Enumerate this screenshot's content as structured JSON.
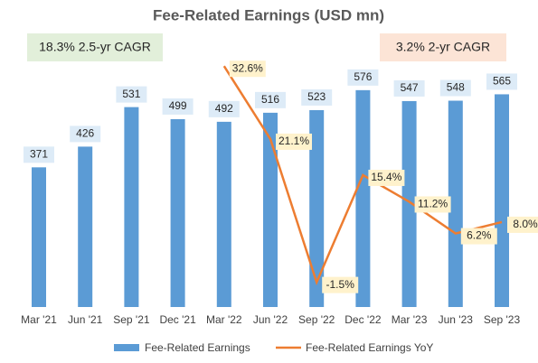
{
  "chart_data": {
    "type": "bar_line",
    "title": "Fee-Related Earnings (USD mn)",
    "annotations": [
      "18.3% 2.5-yr CAGR",
      "3.2% 2-yr CAGR"
    ],
    "categories": [
      "Mar '21",
      "Jun '21",
      "Sep '21",
      "Dec '21",
      "Mar '22",
      "Jun '22",
      "Sep '22",
      "Dec '22",
      "Mar '23",
      "Jun '23",
      "Sep '23"
    ],
    "series": [
      {
        "name": "Fee-Related Earnings",
        "color": "#5b9bd5",
        "values": [
          371,
          426,
          531,
          499,
          492,
          516,
          523,
          576,
          547,
          548,
          565
        ]
      },
      {
        "name": "Fee-Related Earnings YoY",
        "color": "#ed7d31",
        "axis": "y2",
        "values": [
          null,
          null,
          null,
          null,
          32.6,
          21.1,
          -1.5,
          15.4,
          11.2,
          6.2,
          8.0
        ],
        "value_labels": [
          null,
          null,
          null,
          null,
          "32.6%",
          "21.1%",
          "-1.5%",
          "15.4%",
          "11.2%",
          "6.2%",
          "8.0%"
        ]
      }
    ],
    "ylim": [
      0,
      650
    ],
    "y2lim": [
      -5.4,
      33.2
    ],
    "legend": "bottom"
  }
}
